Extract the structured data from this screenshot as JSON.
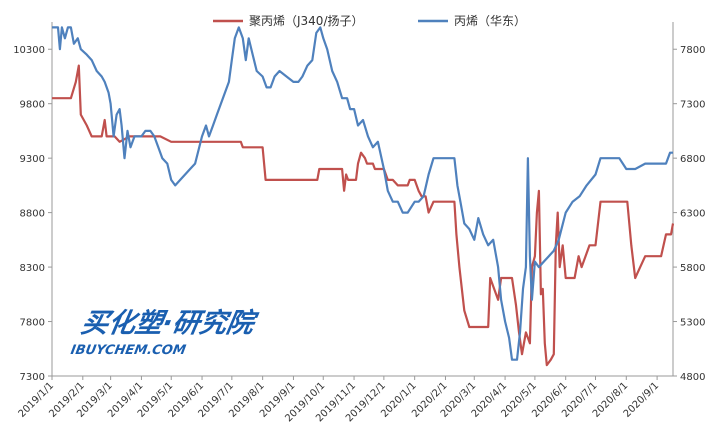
{
  "chart_data": {
    "type": "line",
    "legend_position": "top-center",
    "grid": false,
    "x_ticks": [
      "2019/1/1",
      "2019/2/1",
      "2019/3/1",
      "2019/4/1",
      "2019/5/1",
      "2019/6/1",
      "2019/7/1",
      "2019/8/1",
      "2019/9/1",
      "2019/10/1",
      "2019/11/1",
      "2019/12/1",
      "2020/1/1",
      "2020/2/1",
      "2020/3/1",
      "2020/4/1",
      "2020/5/1",
      "2020/6/1",
      "2020/7/1",
      "2020/8/1",
      "2020/9/1"
    ],
    "y_left": {
      "ticks": [
        7300,
        7800,
        8300,
        8800,
        9300,
        9800,
        10300
      ],
      "range": [
        7300,
        10550
      ]
    },
    "y_right": {
      "ticks": [
        4800,
        5300,
        5800,
        6300,
        6800,
        7300,
        7800
      ],
      "range": [
        4800,
        8050
      ]
    },
    "series": [
      {
        "name": "聚丙烯（J340/扬子）",
        "axis": "left",
        "color": "#c0504d",
        "points": [
          [
            "2019/1/1",
            9850
          ],
          [
            "2019/1/20",
            9850
          ],
          [
            "2019/1/25",
            10000
          ],
          [
            "2019/1/28",
            10150
          ],
          [
            "2019/1/30",
            9700
          ],
          [
            "2019/2/5",
            9600
          ],
          [
            "2019/2/10",
            9500
          ],
          [
            "2019/2/20",
            9500
          ],
          [
            "2019/2/23",
            9650
          ],
          [
            "2019/2/25",
            9500
          ],
          [
            "2019/3/5",
            9500
          ],
          [
            "2019/3/10",
            9450
          ],
          [
            "2019/3/20",
            9500
          ],
          [
            "2019/4/1",
            9500
          ],
          [
            "2019/4/20",
            9500
          ],
          [
            "2019/5/1",
            9450
          ],
          [
            "2019/6/1",
            9450
          ],
          [
            "2019/6/20",
            9450
          ],
          [
            "2019/7/10",
            9450
          ],
          [
            "2019/7/12",
            9400
          ],
          [
            "2019/8/1",
            9400
          ],
          [
            "2019/8/4",
            9100
          ],
          [
            "2019/9/1",
            9100
          ],
          [
            "2019/9/25",
            9100
          ],
          [
            "2019/9/27",
            9200
          ],
          [
            "2019/10/20",
            9200
          ],
          [
            "2019/10/22",
            9000
          ],
          [
            "2019/10/24",
            9150
          ],
          [
            "2019/10/26",
            9100
          ],
          [
            "2019/11/3",
            9100
          ],
          [
            "2019/11/5",
            9250
          ],
          [
            "2019/11/8",
            9350
          ],
          [
            "2019/11/12",
            9300
          ],
          [
            "2019/11/14",
            9250
          ],
          [
            "2019/11/20",
            9250
          ],
          [
            "2019/11/22",
            9200
          ],
          [
            "2019/12/1",
            9200
          ],
          [
            "2019/12/5",
            9100
          ],
          [
            "2019/12/10",
            9100
          ],
          [
            "2019/12/15",
            9050
          ],
          [
            "2019/12/25",
            9050
          ],
          [
            "2019/12/27",
            9100
          ],
          [
            "2020/1/1",
            9100
          ],
          [
            "2020/1/5",
            9000
          ],
          [
            "2020/1/8",
            8950
          ],
          [
            "2020/1/12",
            8950
          ],
          [
            "2020/1/15",
            8800
          ],
          [
            "2020/1/20",
            8900
          ],
          [
            "2020/2/10",
            8900
          ],
          [
            "2020/2/12",
            8600
          ],
          [
            "2020/2/15",
            8300
          ],
          [
            "2020/2/20",
            7900
          ],
          [
            "2020/2/25",
            7750
          ],
          [
            "2020/3/15",
            7750
          ],
          [
            "2020/3/17",
            8200
          ],
          [
            "2020/3/25",
            8000
          ],
          [
            "2020/3/28",
            8200
          ],
          [
            "2020/4/8",
            8200
          ],
          [
            "2020/4/12",
            7950
          ],
          [
            "2020/4/15",
            7700
          ],
          [
            "2020/4/18",
            7500
          ],
          [
            "2020/4/22",
            7700
          ],
          [
            "2020/4/26",
            7600
          ],
          [
            "2020/4/28",
            8300
          ],
          [
            "2020/5/1",
            8400
          ],
          [
            "2020/5/3",
            8800
          ],
          [
            "2020/5/5",
            9000
          ],
          [
            "2020/5/7",
            8050
          ],
          [
            "2020/5/9",
            8100
          ],
          [
            "2020/5/11",
            7600
          ],
          [
            "2020/5/13",
            7400
          ],
          [
            "2020/5/17",
            7450
          ],
          [
            "2020/5/20",
            7500
          ],
          [
            "2020/5/22",
            8500
          ],
          [
            "2020/5/24",
            8800
          ],
          [
            "2020/5/26",
            8300
          ],
          [
            "2020/5/29",
            8500
          ],
          [
            "2020/6/1",
            8200
          ],
          [
            "2020/6/10",
            8200
          ],
          [
            "2020/6/14",
            8400
          ],
          [
            "2020/6/17",
            8300
          ],
          [
            "2020/6/25",
            8500
          ],
          [
            "2020/7/1",
            8500
          ],
          [
            "2020/7/6",
            8900
          ],
          [
            "2020/7/30",
            8900
          ],
          [
            "2020/8/2",
            8900
          ],
          [
            "2020/8/6",
            8500
          ],
          [
            "2020/8/10",
            8200
          ],
          [
            "2020/8/15",
            8300
          ],
          [
            "2020/8/20",
            8400
          ],
          [
            "2020/9/5",
            8400
          ],
          [
            "2020/9/10",
            8600
          ],
          [
            "2020/9/15",
            8600
          ],
          [
            "2020/9/17",
            8700
          ]
        ]
      },
      {
        "name": "丙烯（华东）",
        "axis": "right",
        "color": "#4f81bd",
        "points": [
          [
            "2019/1/1",
            8000
          ],
          [
            "2019/1/7",
            8000
          ],
          [
            "2019/1/9",
            7800
          ],
          [
            "2019/1/11",
            8000
          ],
          [
            "2019/1/14",
            7900
          ],
          [
            "2019/1/17",
            8000
          ],
          [
            "2019/1/20",
            8000
          ],
          [
            "2019/1/23",
            7850
          ],
          [
            "2019/1/27",
            7900
          ],
          [
            "2019/1/30",
            7800
          ],
          [
            "2019/2/5",
            7750
          ],
          [
            "2019/2/10",
            7700
          ],
          [
            "2019/2/15",
            7600
          ],
          [
            "2019/2/20",
            7550
          ],
          [
            "2019/2/23",
            7500
          ],
          [
            "2019/2/27",
            7400
          ],
          [
            "2019/3/1",
            7300
          ],
          [
            "2019/3/4",
            7000
          ],
          [
            "2019/3/7",
            7200
          ],
          [
            "2019/3/10",
            7250
          ],
          [
            "2019/3/12",
            7100
          ],
          [
            "2019/3/15",
            6800
          ],
          [
            "2019/3/18",
            7050
          ],
          [
            "2019/3/21",
            6900
          ],
          [
            "2019/3/25",
            7000
          ],
          [
            "2019/3/28",
            7000
          ],
          [
            "2019/4/1",
            7000
          ],
          [
            "2019/4/5",
            7050
          ],
          [
            "2019/4/10",
            7050
          ],
          [
            "2019/4/14",
            7000
          ],
          [
            "2019/4/18",
            6900
          ],
          [
            "2019/4/22",
            6800
          ],
          [
            "2019/4/27",
            6750
          ],
          [
            "2019/5/1",
            6600
          ],
          [
            "2019/5/5",
            6550
          ],
          [
            "2019/5/10",
            6600
          ],
          [
            "2019/5/15",
            6650
          ],
          [
            "2019/5/20",
            6700
          ],
          [
            "2019/5/25",
            6750
          ],
          [
            "2019/6/1",
            7000
          ],
          [
            "2019/6/5",
            7100
          ],
          [
            "2019/6/8",
            7000
          ],
          [
            "2019/6/12",
            7100
          ],
          [
            "2019/6/16",
            7200
          ],
          [
            "2019/6/22",
            7350
          ],
          [
            "2019/6/28",
            7500
          ],
          [
            "2019/7/1",
            7700
          ],
          [
            "2019/7/4",
            7900
          ],
          [
            "2019/7/8",
            8000
          ],
          [
            "2019/7/12",
            7900
          ],
          [
            "2019/7/15",
            7700
          ],
          [
            "2019/7/18",
            7900
          ],
          [
            "2019/7/22",
            7750
          ],
          [
            "2019/7/26",
            7600
          ],
          [
            "2019/8/1",
            7550
          ],
          [
            "2019/8/5",
            7450
          ],
          [
            "2019/8/9",
            7450
          ],
          [
            "2019/8/13",
            7550
          ],
          [
            "2019/8/18",
            7600
          ],
          [
            "2019/8/25",
            7550
          ],
          [
            "2019/9/1",
            7500
          ],
          [
            "2019/9/6",
            7500
          ],
          [
            "2019/9/10",
            7550
          ],
          [
            "2019/9/15",
            7650
          ],
          [
            "2019/9/20",
            7700
          ],
          [
            "2019/9/24",
            7950
          ],
          [
            "2019/9/28",
            8000
          ],
          [
            "2019/10/1",
            7900
          ],
          [
            "2019/10/5",
            7800
          ],
          [
            "2019/10/10",
            7600
          ],
          [
            "2019/10/15",
            7500
          ],
          [
            "2019/10/20",
            7350
          ],
          [
            "2019/10/25",
            7350
          ],
          [
            "2019/10/28",
            7250
          ],
          [
            "2019/11/1",
            7250
          ],
          [
            "2019/11/5",
            7100
          ],
          [
            "2019/11/10",
            7150
          ],
          [
            "2019/11/15",
            7000
          ],
          [
            "2019/11/20",
            6900
          ],
          [
            "2019/11/25",
            6950
          ],
          [
            "2019/12/1",
            6700
          ],
          [
            "2019/12/5",
            6500
          ],
          [
            "2019/12/10",
            6400
          ],
          [
            "2019/12/15",
            6400
          ],
          [
            "2019/12/20",
            6300
          ],
          [
            "2019/12/25",
            6300
          ],
          [
            "2020/1/1",
            6400
          ],
          [
            "2020/1/5",
            6400
          ],
          [
            "2020/1/10",
            6450
          ],
          [
            "2020/1/15",
            6650
          ],
          [
            "2020/1/20",
            6800
          ],
          [
            "2020/1/25",
            6800
          ],
          [
            "2020/2/5",
            6800
          ],
          [
            "2020/2/10",
            6800
          ],
          [
            "2020/2/13",
            6550
          ],
          [
            "2020/2/16",
            6400
          ],
          [
            "2020/2/20",
            6200
          ],
          [
            "2020/2/25",
            6150
          ],
          [
            "2020/3/1",
            6050
          ],
          [
            "2020/3/5",
            6250
          ],
          [
            "2020/3/10",
            6100
          ],
          [
            "2020/3/15",
            6000
          ],
          [
            "2020/3/20",
            6050
          ],
          [
            "2020/3/25",
            5800
          ],
          [
            "2020/3/28",
            5500
          ],
          [
            "2020/4/1",
            5300
          ],
          [
            "2020/4/5",
            5150
          ],
          [
            "2020/4/8",
            4950
          ],
          [
            "2020/4/13",
            4950
          ],
          [
            "2020/4/16",
            5200
          ],
          [
            "2020/4/19",
            5600
          ],
          [
            "2020/4/22",
            5800
          ],
          [
            "2020/4/24",
            6800
          ],
          [
            "2020/4/26",
            5900
          ],
          [
            "2020/4/28",
            5500
          ],
          [
            "2020/5/1",
            5850
          ],
          [
            "2020/5/5",
            5800
          ],
          [
            "2020/5/10",
            5850
          ],
          [
            "2020/5/15",
            5900
          ],
          [
            "2020/5/20",
            5950
          ],
          [
            "2020/5/25",
            6050
          ],
          [
            "2020/6/1",
            6300
          ],
          [
            "2020/6/8",
            6400
          ],
          [
            "2020/6/15",
            6450
          ],
          [
            "2020/6/22",
            6550
          ],
          [
            "2020/7/1",
            6650
          ],
          [
            "2020/7/6",
            6800
          ],
          [
            "2020/7/15",
            6800
          ],
          [
            "2020/7/25",
            6800
          ],
          [
            "2020/8/1",
            6700
          ],
          [
            "2020/8/10",
            6700
          ],
          [
            "2020/8/20",
            6750
          ],
          [
            "2020/9/1",
            6750
          ],
          [
            "2020/9/10",
            6750
          ],
          [
            "2020/9/14",
            6850
          ],
          [
            "2020/9/17",
            6850
          ]
        ]
      }
    ]
  },
  "watermark": {
    "brand_line": "买化塑·研究院",
    "site_line": "IBUYCHEM.COM"
  }
}
